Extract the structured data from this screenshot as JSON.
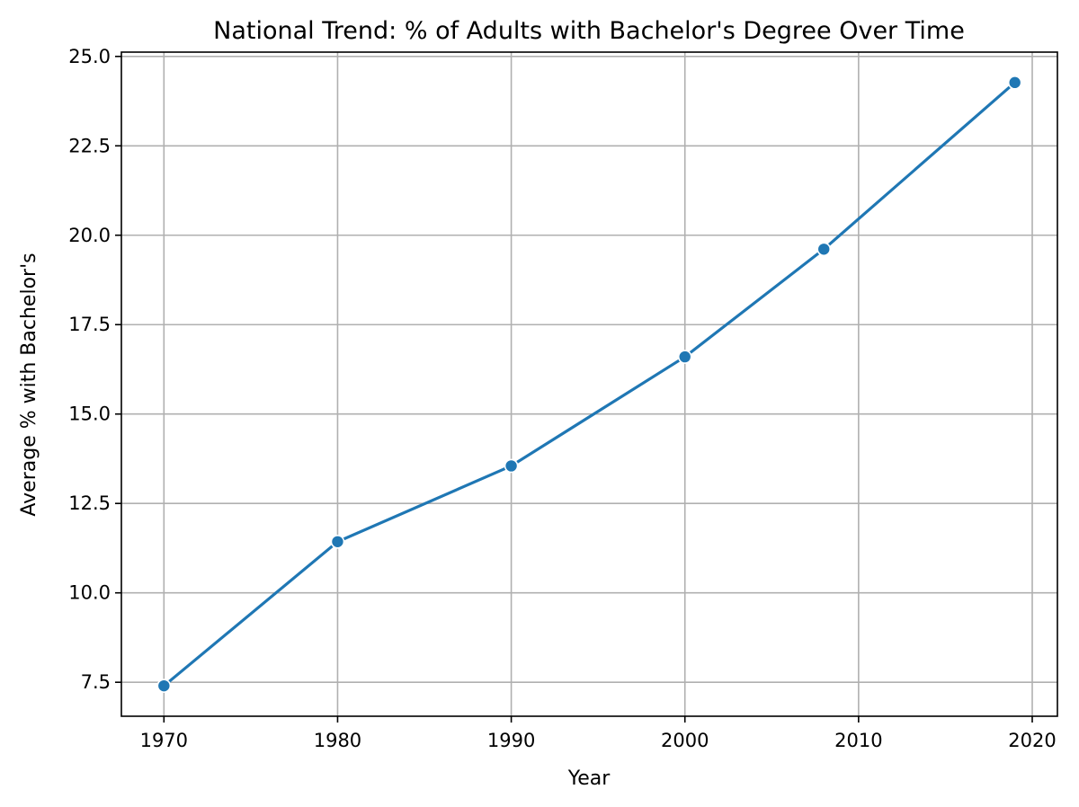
{
  "chart_data": {
    "type": "line",
    "title": "National Trend: % of Adults with Bachelor's Degree Over Time",
    "xlabel": "Year",
    "ylabel": "Average % with Bachelor's",
    "x": [
      1970,
      1980,
      1990,
      2000,
      2008,
      2019
    ],
    "series": [
      {
        "values": [
          7.4,
          11.43,
          13.55,
          16.6,
          19.61,
          24.27
        ]
      }
    ],
    "xlim": [
      1967.55,
      2021.45
    ],
    "ylim": [
      6.55,
      25.12
    ],
    "xticks": [
      1970,
      1980,
      1990,
      2000,
      2010,
      2020
    ],
    "xtick_labels": [
      "1970",
      "1980",
      "1990",
      "2000",
      "2010",
      "2020"
    ],
    "yticks": [
      7.5,
      10.0,
      12.5,
      15.0,
      17.5,
      20.0,
      22.5,
      25.0
    ],
    "ytick_labels": [
      "7.5",
      "10.0",
      "12.5",
      "15.0",
      "17.5",
      "20.0",
      "22.5",
      "25.0"
    ],
    "grid": true,
    "markers": true,
    "line_color": "#1f77b4",
    "grid_color": "#b0b0b0"
  }
}
